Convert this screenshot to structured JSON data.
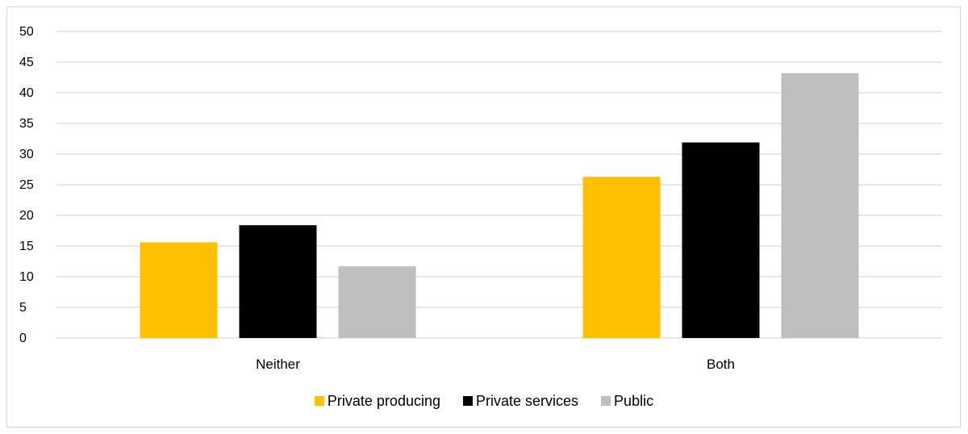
{
  "chart_data": {
    "type": "bar",
    "categories": [
      "Neither",
      "Both"
    ],
    "series": [
      {
        "name": "Private producing",
        "color": "#FFC000",
        "values": [
          15.6,
          26.3
        ]
      },
      {
        "name": "Private services",
        "color": "#000000",
        "values": [
          18.4,
          31.9
        ]
      },
      {
        "name": "Public",
        "color": "#BFBFBF",
        "values": [
          11.7,
          43.2
        ]
      }
    ],
    "title": "",
    "xlabel": "",
    "ylabel": "",
    "ylim": [
      0,
      50
    ],
    "yticks": [
      0,
      5,
      10,
      15,
      20,
      25,
      30,
      35,
      40,
      45,
      50
    ],
    "grid": true,
    "legend_position": "bottom",
    "gridline_color": "#D9D9D9"
  }
}
